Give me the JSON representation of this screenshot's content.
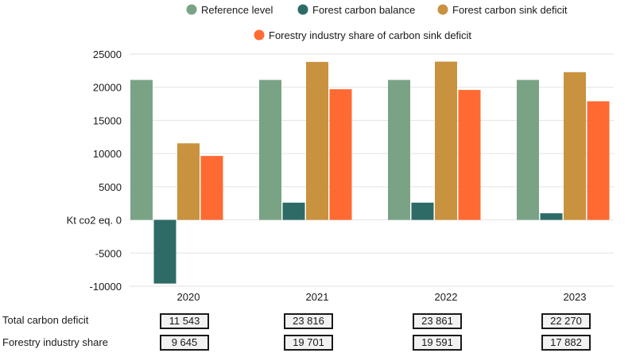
{
  "chart_data": {
    "type": "bar",
    "categories": [
      "2020",
      "2021",
      "2022",
      "2023"
    ],
    "series": [
      {
        "name": "Reference level",
        "color": "#7aa386",
        "values": [
          21100,
          21100,
          21100,
          21100
        ]
      },
      {
        "name": "Forest carbon balance",
        "color": "#2e6b67",
        "values": [
          -9600,
          2600,
          2600,
          1000
        ]
      },
      {
        "name": "Forest carbon sink deficit",
        "color": "#c9923f",
        "values": [
          11543,
          23816,
          23861,
          22270
        ]
      },
      {
        "name": "Forestry industry share of carbon sink deficit",
        "color": "#ff6a33",
        "values": [
          9645,
          19701,
          19591,
          17882
        ]
      }
    ],
    "ylim": [
      -10000,
      25000
    ],
    "yticks": [
      25000,
      20000,
      15000,
      10000,
      5000,
      0,
      -5000,
      -10000
    ],
    "ytick_labels": [
      "25000",
      "20000",
      "15000",
      "10000",
      "5000",
      "Kt co2 eq. 0",
      "-5000",
      "-10000"
    ],
    "ylabel": "Kt co2 eq.",
    "grid": true,
    "legend_position": "top"
  },
  "table": {
    "rows": [
      {
        "label": "Total carbon deficit",
        "values": [
          "11 543",
          "23 816",
          "23 861",
          "22 270"
        ]
      },
      {
        "label": "Forestry industry share",
        "values": [
          "9 645",
          "19 701",
          "19 591",
          "17 882"
        ]
      }
    ]
  }
}
